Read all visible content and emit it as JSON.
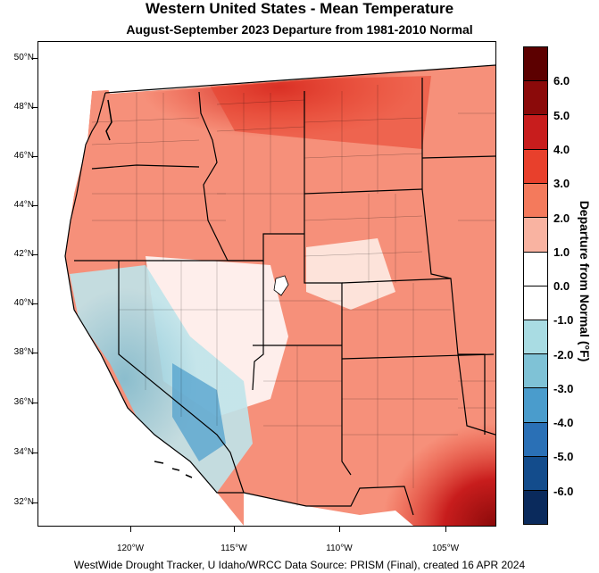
{
  "title": "Western United States - Mean Temperature",
  "subtitle": "August-September 2023  Departure from 1981-2010 Normal",
  "latitude_labels": [
    "50°N",
    "48°N",
    "46°N",
    "44°N",
    "42°N",
    "40°N",
    "38°N",
    "36°N",
    "34°N",
    "32°N"
  ],
  "longitude_labels": [
    "120°W",
    "115°W",
    "110°W",
    "105°W"
  ],
  "legend": {
    "title": "Departure from Normal (°F)",
    "labels": [
      "6.0",
      "5.0",
      "4.0",
      "3.0",
      "2.0",
      "1.0",
      "0.0",
      "-1.0",
      "-2.0",
      "-3.0",
      "-4.0",
      "-5.0",
      "-6.0"
    ],
    "colors": [
      "#5c0000",
      "#8b0a0a",
      "#c81d1d",
      "#e8402c",
      "#f47a5c",
      "#f9b3a1",
      "#ffffff",
      "#ffffff",
      "#a9dce3",
      "#7fc2d6",
      "#4a9ccc",
      "#2a70b6",
      "#134c8c",
      "#0a2a5c"
    ]
  },
  "credit": "WestWide Drought Tracker, U Idaho/WRCC Data Source: PRISM (Final), created 16 APR 2024"
}
